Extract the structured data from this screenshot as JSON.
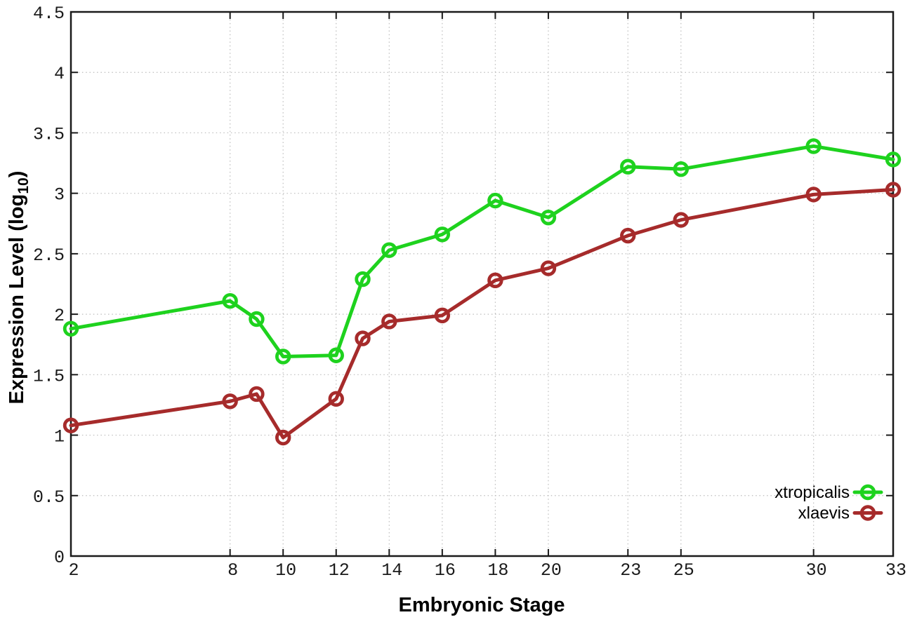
{
  "chart_data": {
    "type": "line",
    "x": [
      2,
      8,
      9,
      10,
      12,
      13,
      14,
      16,
      18,
      20,
      23,
      25,
      30,
      33
    ],
    "series": [
      {
        "name": "xtropicalis",
        "color": "#1ED21E",
        "marker": "open-circle",
        "values": [
          1.88,
          2.11,
          1.96,
          1.65,
          1.66,
          2.29,
          2.53,
          2.66,
          2.94,
          2.8,
          3.22,
          3.2,
          3.39,
          3.28
        ]
      },
      {
        "name": "xlaevis",
        "color": "#A62B2B",
        "marker": "open-circle",
        "values": [
          1.08,
          1.28,
          1.34,
          0.98,
          1.3,
          1.8,
          1.94,
          1.99,
          2.28,
          2.38,
          2.65,
          2.78,
          2.99,
          3.03
        ]
      }
    ],
    "title": "",
    "xlabel": "Embryonic Stage",
    "ylabel": "Expression Level (log10)",
    "ylabel_parts": {
      "prefix": "Expression Level (log",
      "sub": "10",
      "suffix": ")"
    },
    "xlim": [
      2,
      33
    ],
    "ylim": [
      0,
      4.5
    ],
    "xticks": {
      "values": [
        2,
        8,
        10,
        12,
        14,
        16,
        18,
        20,
        23,
        25,
        30,
        33
      ],
      "labels": [
        "2",
        "8",
        "10",
        "12",
        "14",
        "16",
        "18",
        "20",
        "23",
        "25",
        "30",
        "33"
      ]
    },
    "yticks": {
      "values": [
        0,
        0.5,
        1,
        1.5,
        2,
        2.5,
        3,
        3.5,
        4,
        4.5
      ],
      "labels": [
        "0",
        "0.5",
        "1",
        "1.5",
        "2",
        "2.5",
        "3",
        "3.5",
        "4",
        "4.5"
      ]
    },
    "grid": true,
    "legend": {
      "position": "bottom-right",
      "entries": [
        "xtropicalis",
        "xlaevis"
      ]
    },
    "colors": {
      "background": "#ffffff",
      "grid": "#bcbcbc",
      "border": "#1a1a1a",
      "text": "#1a1a1a"
    }
  }
}
